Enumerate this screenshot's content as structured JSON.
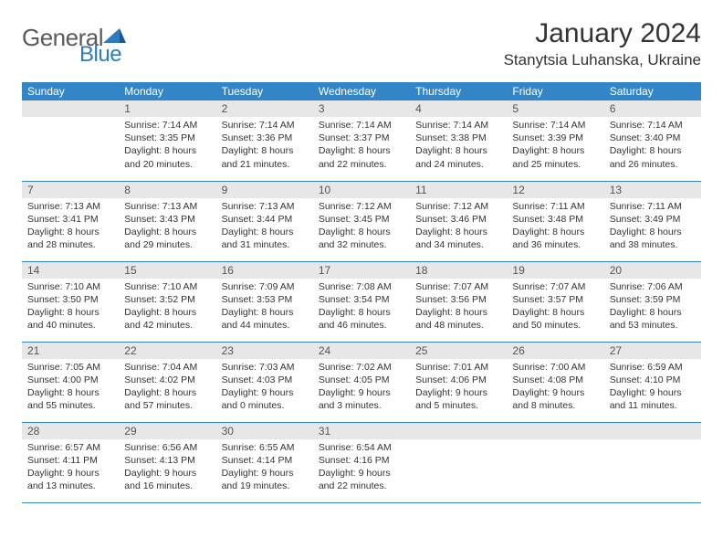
{
  "logo": {
    "part1": "General",
    "part2": "Blue"
  },
  "title": "January 2024",
  "location": "Stanytsia Luhanska, Ukraine",
  "colors": {
    "header_bg": "#3285c7",
    "header_text": "#ffffff",
    "daynum_bg": "#e7e7e7",
    "border": "#3285c7",
    "logo_gray": "#5a5a5a",
    "logo_blue": "#2b7bbf"
  },
  "day_headers": [
    "Sunday",
    "Monday",
    "Tuesday",
    "Wednesday",
    "Thursday",
    "Friday",
    "Saturday"
  ],
  "weeks": [
    [
      {
        "n": "",
        "lines": []
      },
      {
        "n": "1",
        "lines": [
          "Sunrise: 7:14 AM",
          "Sunset: 3:35 PM",
          "Daylight: 8 hours and 20 minutes."
        ]
      },
      {
        "n": "2",
        "lines": [
          "Sunrise: 7:14 AM",
          "Sunset: 3:36 PM",
          "Daylight: 8 hours and 21 minutes."
        ]
      },
      {
        "n": "3",
        "lines": [
          "Sunrise: 7:14 AM",
          "Sunset: 3:37 PM",
          "Daylight: 8 hours and 22 minutes."
        ]
      },
      {
        "n": "4",
        "lines": [
          "Sunrise: 7:14 AM",
          "Sunset: 3:38 PM",
          "Daylight: 8 hours and 24 minutes."
        ]
      },
      {
        "n": "5",
        "lines": [
          "Sunrise: 7:14 AM",
          "Sunset: 3:39 PM",
          "Daylight: 8 hours and 25 minutes."
        ]
      },
      {
        "n": "6",
        "lines": [
          "Sunrise: 7:14 AM",
          "Sunset: 3:40 PM",
          "Daylight: 8 hours and 26 minutes."
        ]
      }
    ],
    [
      {
        "n": "7",
        "lines": [
          "Sunrise: 7:13 AM",
          "Sunset: 3:41 PM",
          "Daylight: 8 hours and 28 minutes."
        ]
      },
      {
        "n": "8",
        "lines": [
          "Sunrise: 7:13 AM",
          "Sunset: 3:43 PM",
          "Daylight: 8 hours and 29 minutes."
        ]
      },
      {
        "n": "9",
        "lines": [
          "Sunrise: 7:13 AM",
          "Sunset: 3:44 PM",
          "Daylight: 8 hours and 31 minutes."
        ]
      },
      {
        "n": "10",
        "lines": [
          "Sunrise: 7:12 AM",
          "Sunset: 3:45 PM",
          "Daylight: 8 hours and 32 minutes."
        ]
      },
      {
        "n": "11",
        "lines": [
          "Sunrise: 7:12 AM",
          "Sunset: 3:46 PM",
          "Daylight: 8 hours and 34 minutes."
        ]
      },
      {
        "n": "12",
        "lines": [
          "Sunrise: 7:11 AM",
          "Sunset: 3:48 PM",
          "Daylight: 8 hours and 36 minutes."
        ]
      },
      {
        "n": "13",
        "lines": [
          "Sunrise: 7:11 AM",
          "Sunset: 3:49 PM",
          "Daylight: 8 hours and 38 minutes."
        ]
      }
    ],
    [
      {
        "n": "14",
        "lines": [
          "Sunrise: 7:10 AM",
          "Sunset: 3:50 PM",
          "Daylight: 8 hours and 40 minutes."
        ]
      },
      {
        "n": "15",
        "lines": [
          "Sunrise: 7:10 AM",
          "Sunset: 3:52 PM",
          "Daylight: 8 hours and 42 minutes."
        ]
      },
      {
        "n": "16",
        "lines": [
          "Sunrise: 7:09 AM",
          "Sunset: 3:53 PM",
          "Daylight: 8 hours and 44 minutes."
        ]
      },
      {
        "n": "17",
        "lines": [
          "Sunrise: 7:08 AM",
          "Sunset: 3:54 PM",
          "Daylight: 8 hours and 46 minutes."
        ]
      },
      {
        "n": "18",
        "lines": [
          "Sunrise: 7:07 AM",
          "Sunset: 3:56 PM",
          "Daylight: 8 hours and 48 minutes."
        ]
      },
      {
        "n": "19",
        "lines": [
          "Sunrise: 7:07 AM",
          "Sunset: 3:57 PM",
          "Daylight: 8 hours and 50 minutes."
        ]
      },
      {
        "n": "20",
        "lines": [
          "Sunrise: 7:06 AM",
          "Sunset: 3:59 PM",
          "Daylight: 8 hours and 53 minutes."
        ]
      }
    ],
    [
      {
        "n": "21",
        "lines": [
          "Sunrise: 7:05 AM",
          "Sunset: 4:00 PM",
          "Daylight: 8 hours and 55 minutes."
        ]
      },
      {
        "n": "22",
        "lines": [
          "Sunrise: 7:04 AM",
          "Sunset: 4:02 PM",
          "Daylight: 8 hours and 57 minutes."
        ]
      },
      {
        "n": "23",
        "lines": [
          "Sunrise: 7:03 AM",
          "Sunset: 4:03 PM",
          "Daylight: 9 hours and 0 minutes."
        ]
      },
      {
        "n": "24",
        "lines": [
          "Sunrise: 7:02 AM",
          "Sunset: 4:05 PM",
          "Daylight: 9 hours and 3 minutes."
        ]
      },
      {
        "n": "25",
        "lines": [
          "Sunrise: 7:01 AM",
          "Sunset: 4:06 PM",
          "Daylight: 9 hours and 5 minutes."
        ]
      },
      {
        "n": "26",
        "lines": [
          "Sunrise: 7:00 AM",
          "Sunset: 4:08 PM",
          "Daylight: 9 hours and 8 minutes."
        ]
      },
      {
        "n": "27",
        "lines": [
          "Sunrise: 6:59 AM",
          "Sunset: 4:10 PM",
          "Daylight: 9 hours and 11 minutes."
        ]
      }
    ],
    [
      {
        "n": "28",
        "lines": [
          "Sunrise: 6:57 AM",
          "Sunset: 4:11 PM",
          "Daylight: 9 hours and 13 minutes."
        ]
      },
      {
        "n": "29",
        "lines": [
          "Sunrise: 6:56 AM",
          "Sunset: 4:13 PM",
          "Daylight: 9 hours and 16 minutes."
        ]
      },
      {
        "n": "30",
        "lines": [
          "Sunrise: 6:55 AM",
          "Sunset: 4:14 PM",
          "Daylight: 9 hours and 19 minutes."
        ]
      },
      {
        "n": "31",
        "lines": [
          "Sunrise: 6:54 AM",
          "Sunset: 4:16 PM",
          "Daylight: 9 hours and 22 minutes."
        ]
      },
      {
        "n": "",
        "lines": []
      },
      {
        "n": "",
        "lines": []
      },
      {
        "n": "",
        "lines": []
      }
    ]
  ]
}
